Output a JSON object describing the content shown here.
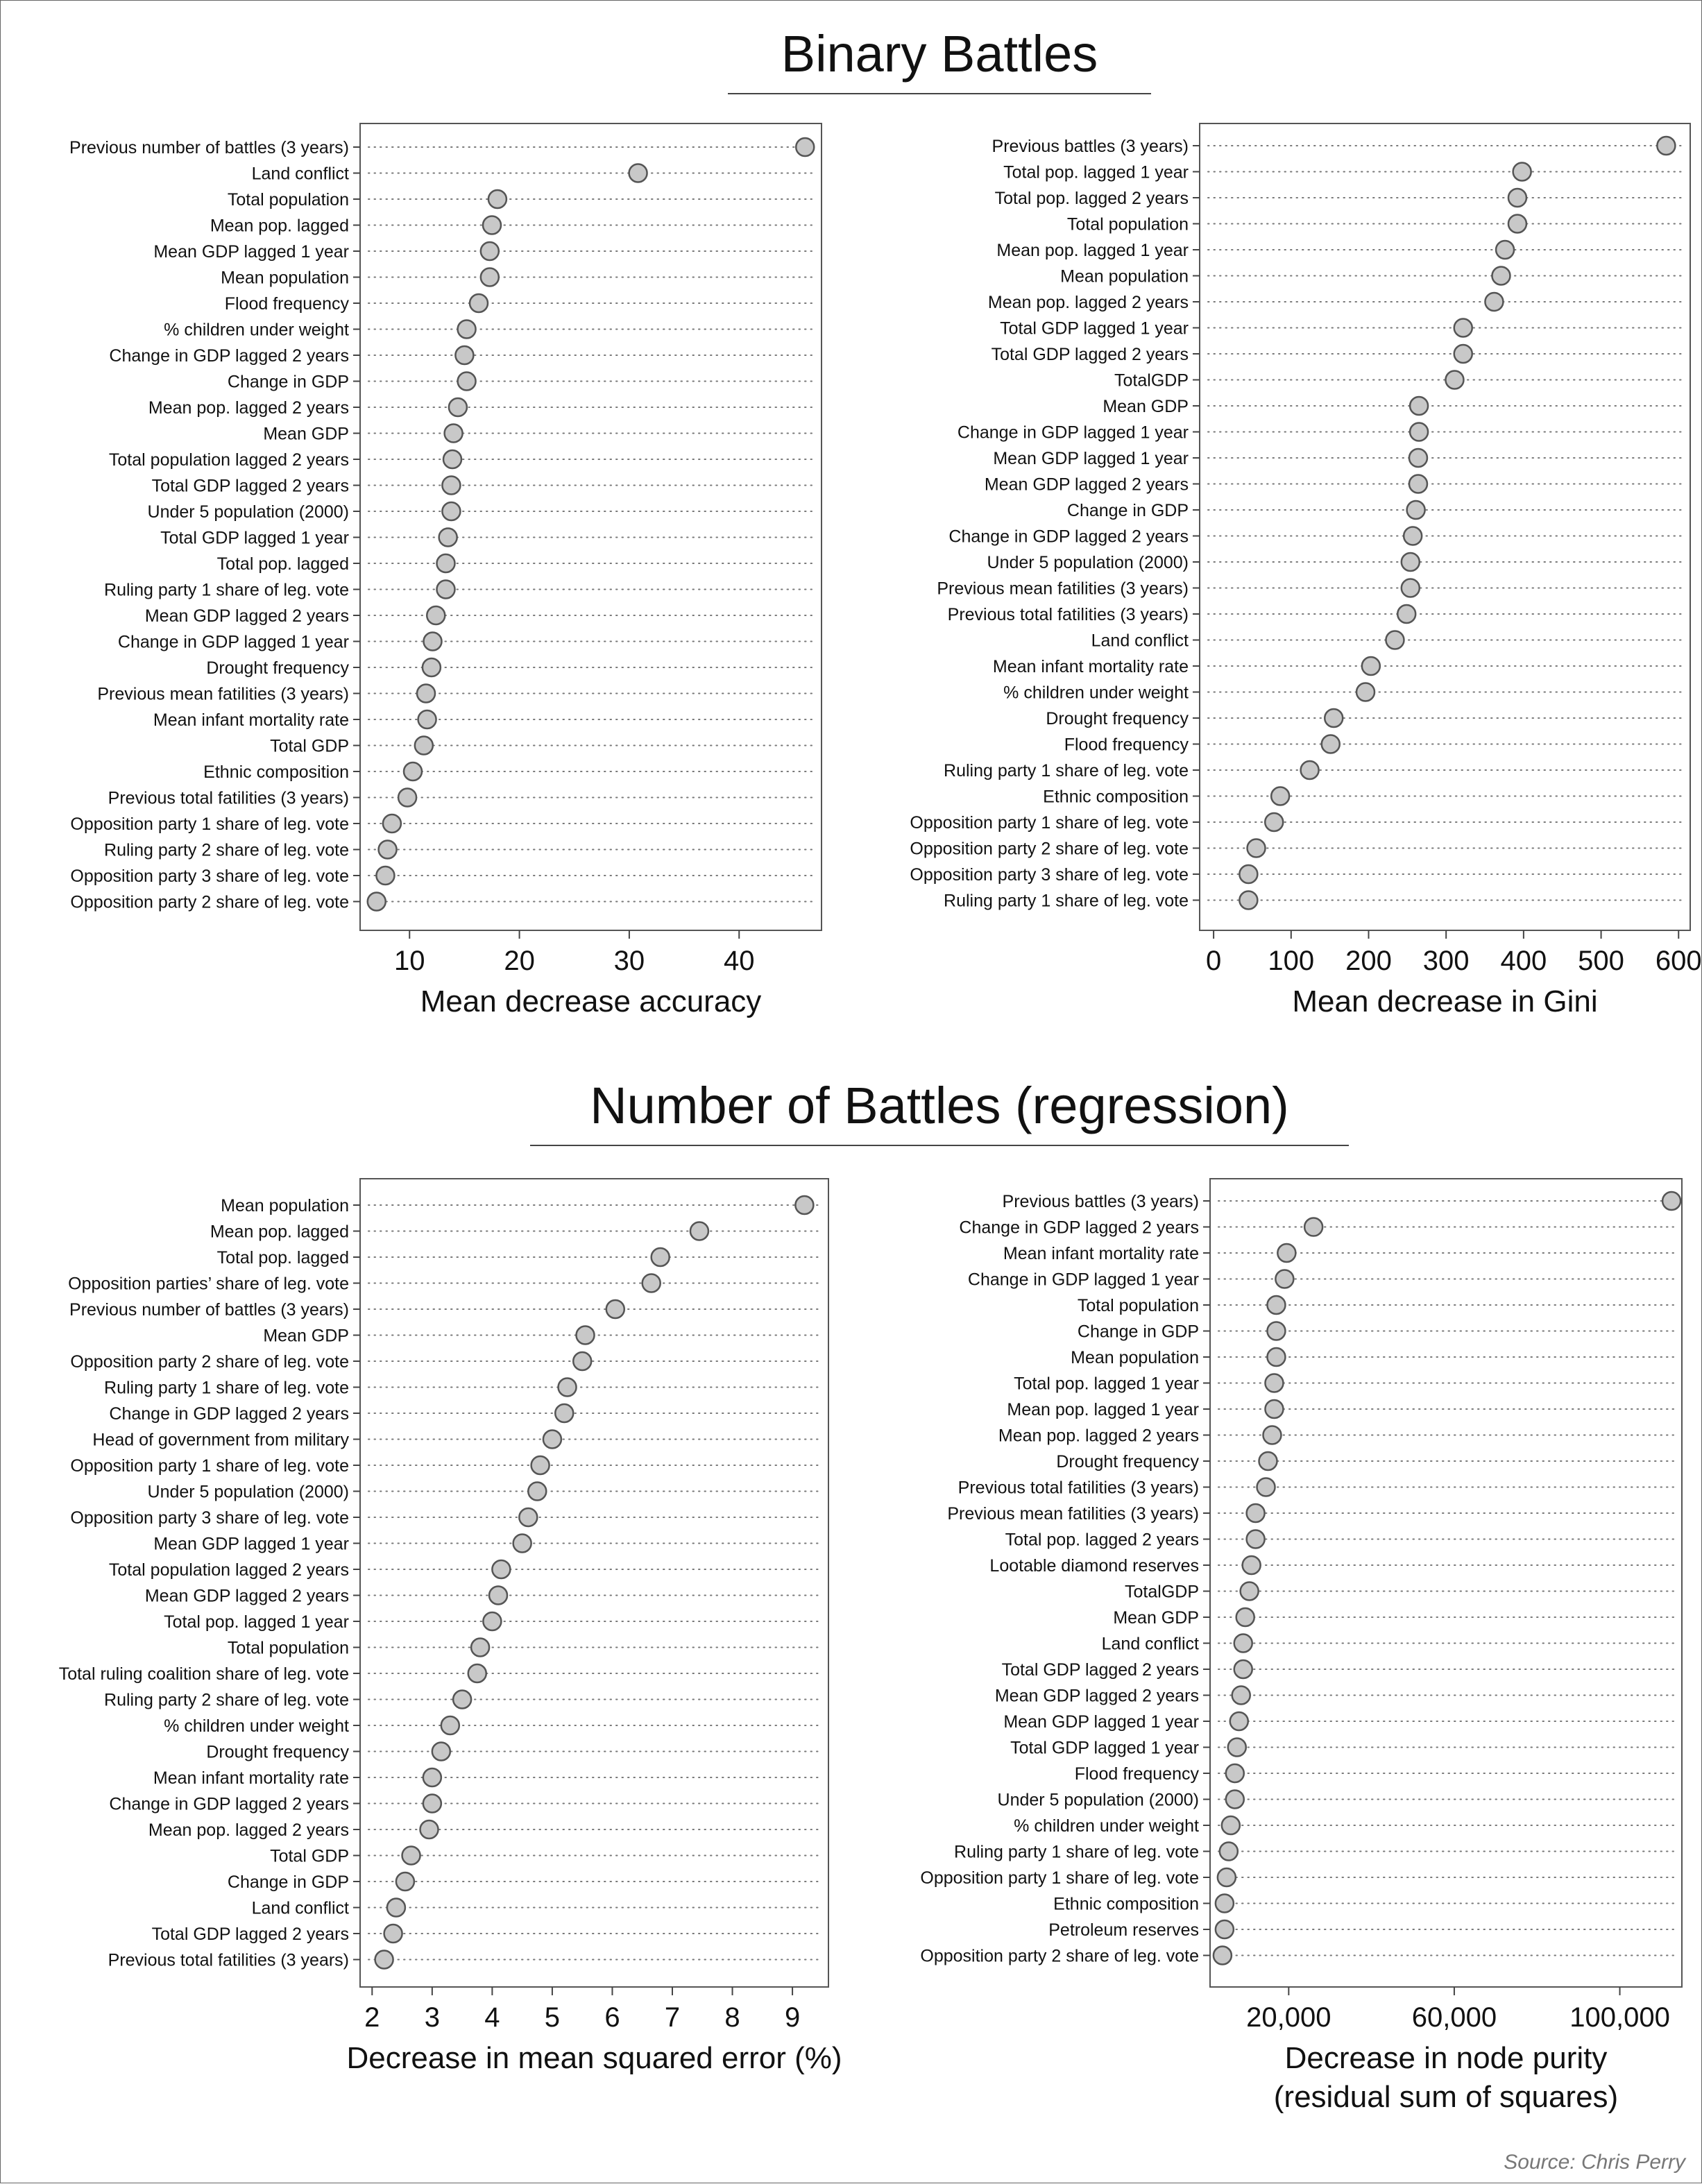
{
  "sections": [
    {
      "title": "Binary Battles"
    },
    {
      "title": "Number of Battles (regression)"
    }
  ],
  "source": "Source: Chris Perry",
  "chart_data": [
    {
      "type": "scatter",
      "style": "dot-plot",
      "xlabel": [
        "Mean decrease accuracy"
      ],
      "xlim": [
        5.5,
        47.5
      ],
      "xticks": [
        10,
        20,
        30,
        40
      ],
      "xtick_labels": [
        "10",
        "20",
        "30",
        "40"
      ],
      "categories": [
        "Previous number of battles (3 years)",
        "Land conflict",
        "Total population",
        "Mean pop. lagged",
        "Mean GDP lagged 1 year",
        "Mean population",
        "Flood frequency",
        "% children under weight",
        "Change in GDP lagged 2 years",
        "Change in GDP",
        "Mean pop. lagged 2 years",
        "Mean GDP",
        "Total population lagged 2 years",
        "Total GDP lagged 2 years",
        "Under 5 population (2000)",
        "Total GDP lagged 1 year",
        "Total pop. lagged",
        "Ruling party 1 share of leg. vote",
        "Mean GDP lagged 2 years",
        "Change in GDP lagged 1 year",
        "Drought frequency",
        "Previous mean fatilities (3 years)",
        "Mean infant mortality rate",
        "Total GDP",
        "Ethnic composition",
        "Previous total fatilities (3 years)",
        "Opposition party 1 share of leg. vote",
        "Ruling party 2 share of leg. vote",
        "Opposition party 3 share of leg. vote",
        "Opposition party 2 share of leg. vote"
      ],
      "values": [
        46.0,
        30.8,
        18.0,
        17.5,
        17.3,
        17.3,
        16.3,
        15.2,
        15.0,
        15.2,
        14.4,
        14.0,
        13.9,
        13.8,
        13.8,
        13.5,
        13.3,
        13.3,
        12.4,
        12.1,
        12.0,
        11.5,
        11.6,
        11.3,
        10.3,
        9.8,
        8.4,
        8.0,
        7.8,
        7.0
      ]
    },
    {
      "type": "scatter",
      "style": "dot-plot",
      "xlabel": [
        "Mean decrease in Gini"
      ],
      "xlim": [
        -18,
        615
      ],
      "xticks": [
        0,
        100,
        200,
        300,
        400,
        500,
        600
      ],
      "xtick_labels": [
        "0",
        "100",
        "200",
        "300",
        "400",
        "500",
        "600"
      ],
      "categories": [
        "Previous battles (3 years)",
        "Total pop. lagged 1 year",
        "Total pop. lagged 2 years",
        "Total population",
        "Mean pop. lagged 1 year",
        "Mean population",
        "Mean pop. lagged 2 years",
        "Total GDP lagged 1 year",
        "Total GDP lagged 2 years",
        "TotalGDP",
        "Mean GDP",
        "Change in GDP lagged 1 year",
        "Mean GDP lagged 1 year",
        "Mean GDP lagged 2 years",
        "Change in GDP",
        "Change in GDP lagged 2 years",
        "Under 5 population (2000)",
        "Previous mean fatilities (3 years)",
        "Previous total fatilities (3 years)",
        "Land conflict",
        "Mean infant mortality rate",
        "% children under weight",
        "Drought frequency",
        "Flood frequency",
        "Ruling party 1 share of leg. vote",
        "Ethnic composition",
        "Opposition party 1 share of leg. vote",
        "Opposition party 2 share of leg. vote",
        "Opposition party 3 share of leg. vote",
        "Ruling party 1 share of leg. vote"
      ],
      "values": [
        584,
        398,
        392,
        392,
        376,
        371,
        362,
        322,
        322,
        311,
        265,
        265,
        264,
        264,
        261,
        257,
        254,
        254,
        249,
        234,
        203,
        196,
        155,
        151,
        124,
        86,
        78,
        55,
        45,
        45
      ]
    },
    {
      "type": "scatter",
      "style": "dot-plot",
      "xlabel": [
        "Decrease in mean squared error (%)"
      ],
      "xlim": [
        1.8,
        9.6
      ],
      "xticks": [
        2,
        3,
        4,
        5,
        6,
        7,
        8,
        9
      ],
      "xtick_labels": [
        "2",
        "3",
        "4",
        "5",
        "6",
        "7",
        "8",
        "9"
      ],
      "categories": [
        "Mean population",
        "Mean pop. lagged",
        "Total pop. lagged",
        "Opposition parties’ share of leg. vote",
        "Previous number of battles (3 years)",
        "Mean GDP",
        "Opposition party 2 share of leg. vote",
        "Ruling party 1 share of leg. vote",
        "Change in GDP lagged 2 years",
        "Head of government from military",
        "Opposition party 1 share of leg. vote",
        "Under 5 population (2000)",
        "Opposition party 3 share of leg. vote",
        "Mean GDP lagged 1 year",
        "Total population lagged 2 years",
        "Mean GDP lagged 2 years",
        "Total pop. lagged 1 year",
        "Total population",
        "Total ruling coalition share of leg. vote",
        "Ruling party 2 share of leg. vote",
        "% children under weight",
        "Drought frequency",
        "Mean infant mortality rate",
        "Change in GDP lagged 2 years",
        "Mean pop. lagged 2 years",
        "Total GDP",
        "Change in GDP",
        "Land conflict",
        "Total GDP lagged 2 years",
        "Previous total fatilities (3 years)"
      ],
      "values": [
        9.2,
        7.45,
        6.8,
        6.65,
        6.05,
        5.55,
        5.5,
        5.25,
        5.2,
        5.0,
        4.8,
        4.75,
        4.6,
        4.5,
        4.15,
        4.1,
        4.0,
        3.8,
        3.75,
        3.5,
        3.3,
        3.15,
        3.0,
        3.0,
        2.95,
        2.65,
        2.55,
        2.4,
        2.35,
        2.2
      ]
    },
    {
      "type": "scatter",
      "style": "dot-plot",
      "xlabel": [
        "Decrease in node purity",
        "(residual sum of squares)"
      ],
      "xlim": [
        1000,
        115000
      ],
      "xticks": [
        20000,
        60000,
        100000
      ],
      "xtick_labels": [
        "20,000",
        "60,000",
        "100,000"
      ],
      "categories": [
        "Previous battles (3 years)",
        "Change in GDP lagged 2 years",
        "Mean infant mortality rate",
        "Change in GDP lagged 1 year",
        "Total population",
        "Change in GDP",
        "Mean population",
        "Total pop. lagged 1 year",
        "Mean pop. lagged 1 year",
        "Mean pop. lagged 2 years",
        "Drought frequency",
        "Previous total fatilities (3 years)",
        "Previous mean fatilities (3 years)",
        "Total pop. lagged 2 years",
        "Lootable diamond reserves",
        "TotalGDP",
        "Mean GDP",
        "Land conflict",
        "Total GDP lagged 2 years",
        "Mean GDP lagged 2 years",
        "Mean GDP lagged 1 year",
        "Total GDP lagged 1 year",
        "Flood frequency",
        "Under 5 population (2000)",
        "% children under weight",
        "Ruling party 1 share of leg. vote",
        "Opposition party 1 share of leg. vote",
        "Ethnic composition",
        "Petroleum reserves",
        "Opposition party 2 share of leg. vote"
      ],
      "values": [
        112500,
        26000,
        19500,
        19000,
        17000,
        17000,
        17000,
        16500,
        16500,
        16000,
        15000,
        14500,
        12000,
        12000,
        11000,
        10500,
        9500,
        9000,
        9000,
        8500,
        8000,
        7500,
        7000,
        7000,
        6000,
        5500,
        5000,
        4500,
        4500,
        4000
      ]
    }
  ]
}
